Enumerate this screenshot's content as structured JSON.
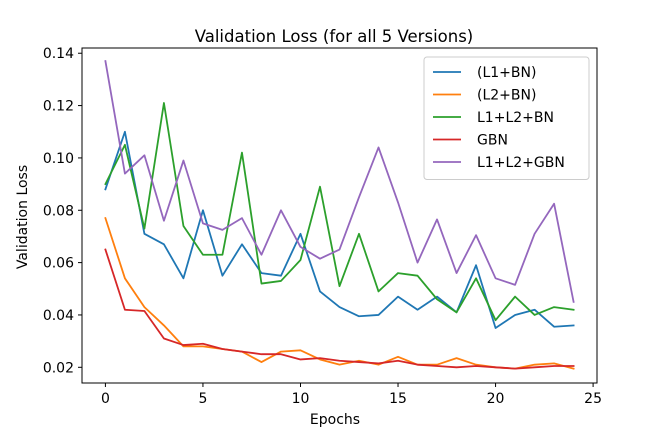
{
  "chart_data": {
    "type": "line",
    "title": "Validation Loss (for all 5 Versions)",
    "xlabel": "Epochs",
    "ylabel": "Validation Loss",
    "xlim": [
      -1.2,
      25.2
    ],
    "ylim": [
      0.014,
      0.142
    ],
    "xticks": [
      0,
      5,
      10,
      15,
      20,
      25
    ],
    "yticks": [
      0.02,
      0.04,
      0.06,
      0.08,
      0.1,
      0.12,
      0.14
    ],
    "ytick_labels": [
      "0.02",
      "0.04",
      "0.06",
      "0.08",
      "0.10",
      "0.12",
      "0.14"
    ],
    "grid": false,
    "legend_position": "top-right",
    "x": [
      0,
      1,
      2,
      3,
      4,
      5,
      6,
      7,
      8,
      9,
      10,
      11,
      12,
      13,
      14,
      15,
      16,
      17,
      18,
      19,
      20,
      21,
      22,
      23,
      24
    ],
    "series": [
      {
        "name": "(L1+BN)",
        "color": "#1f77b4",
        "values": [
          0.088,
          0.11,
          0.071,
          0.067,
          0.054,
          0.08,
          0.055,
          0.067,
          0.056,
          0.055,
          0.071,
          0.049,
          0.043,
          0.0395,
          0.04,
          0.047,
          0.042,
          0.047,
          0.041,
          0.059,
          0.035,
          0.04,
          0.042,
          0.0355,
          0.036
        ]
      },
      {
        "name": "(L2+BN)",
        "color": "#ff7f0e",
        "values": [
          0.077,
          0.054,
          0.043,
          0.036,
          0.028,
          0.028,
          0.027,
          0.026,
          0.022,
          0.026,
          0.0265,
          0.023,
          0.021,
          0.0225,
          0.021,
          0.024,
          0.021,
          0.021,
          0.0235,
          0.021,
          0.02,
          0.0195,
          0.021,
          0.0215,
          0.0195
        ]
      },
      {
        "name": "L1+L2+BN",
        "color": "#2ca02c",
        "values": [
          0.09,
          0.105,
          0.073,
          0.121,
          0.074,
          0.063,
          0.063,
          0.102,
          0.052,
          0.053,
          0.061,
          0.089,
          0.051,
          0.071,
          0.049,
          0.056,
          0.055,
          0.046,
          0.041,
          0.054,
          0.038,
          0.047,
          0.04,
          0.043,
          0.042
        ]
      },
      {
        "name": "GBN",
        "color": "#d62728",
        "values": [
          0.065,
          0.042,
          0.0415,
          0.031,
          0.0285,
          0.029,
          0.027,
          0.026,
          0.025,
          0.025,
          0.023,
          0.0235,
          0.0225,
          0.022,
          0.0215,
          0.0225,
          0.021,
          0.0205,
          0.02,
          0.0205,
          0.02,
          0.0195,
          0.02,
          0.0205,
          0.0205
        ]
      },
      {
        "name": "L1+L2+GBN",
        "color": "#9467bd",
        "values": [
          0.137,
          0.094,
          0.101,
          0.076,
          0.099,
          0.075,
          0.0725,
          0.077,
          0.063,
          0.08,
          0.066,
          0.0615,
          0.065,
          0.085,
          0.104,
          0.083,
          0.06,
          0.0765,
          0.056,
          0.0705,
          0.054,
          0.0515,
          0.071,
          0.0825,
          0.045
        ]
      }
    ]
  }
}
